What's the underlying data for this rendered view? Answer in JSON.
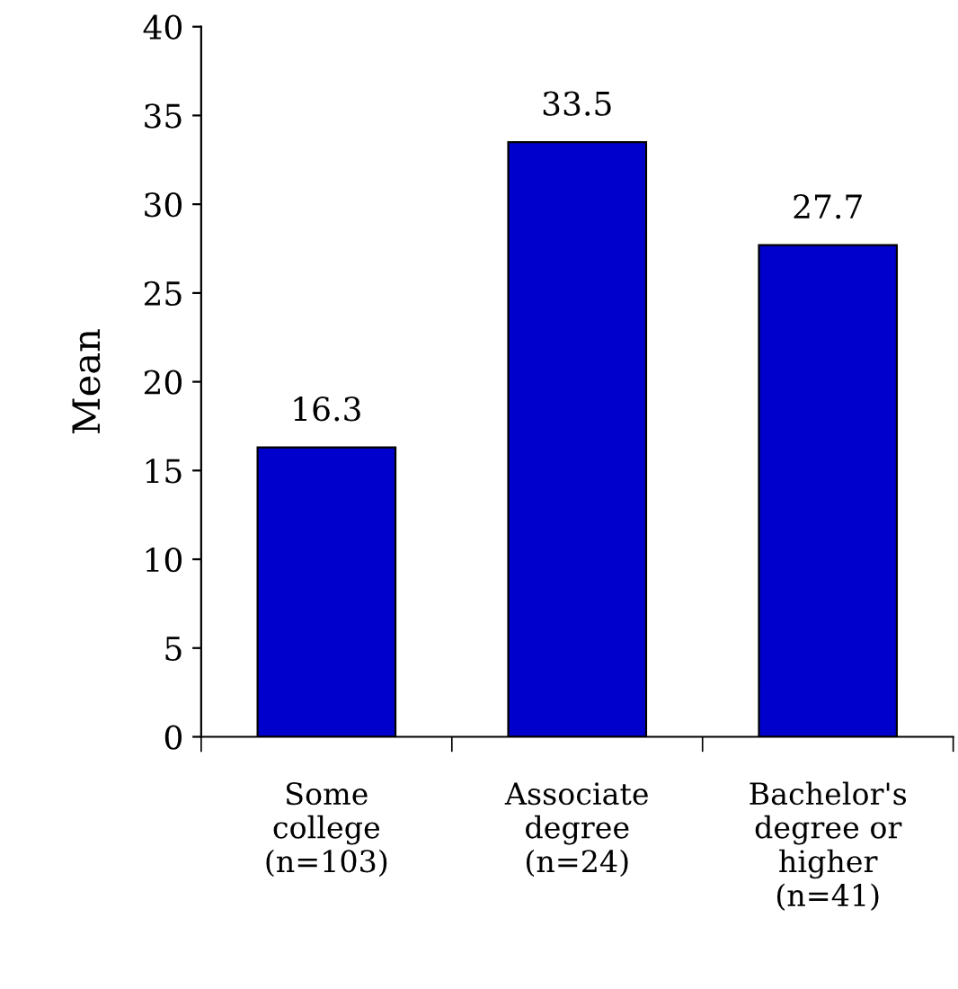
{
  "chart_data": {
    "type": "bar",
    "ylabel": "Mean",
    "categories": [
      "Some\ncollege\n(n=103)",
      "Associate\ndegree\n(n=24)",
      "Bachelor's\ndegree or\nhigher\n(n=41)"
    ],
    "values": [
      16.3,
      33.5,
      27.7
    ],
    "color": "#0000cc",
    "ylim": [
      0,
      40
    ],
    "yticks": [
      0,
      5,
      10,
      15,
      20,
      25,
      30,
      35,
      40
    ],
    "data_labels": true,
    "grid": false,
    "legend": false
  }
}
